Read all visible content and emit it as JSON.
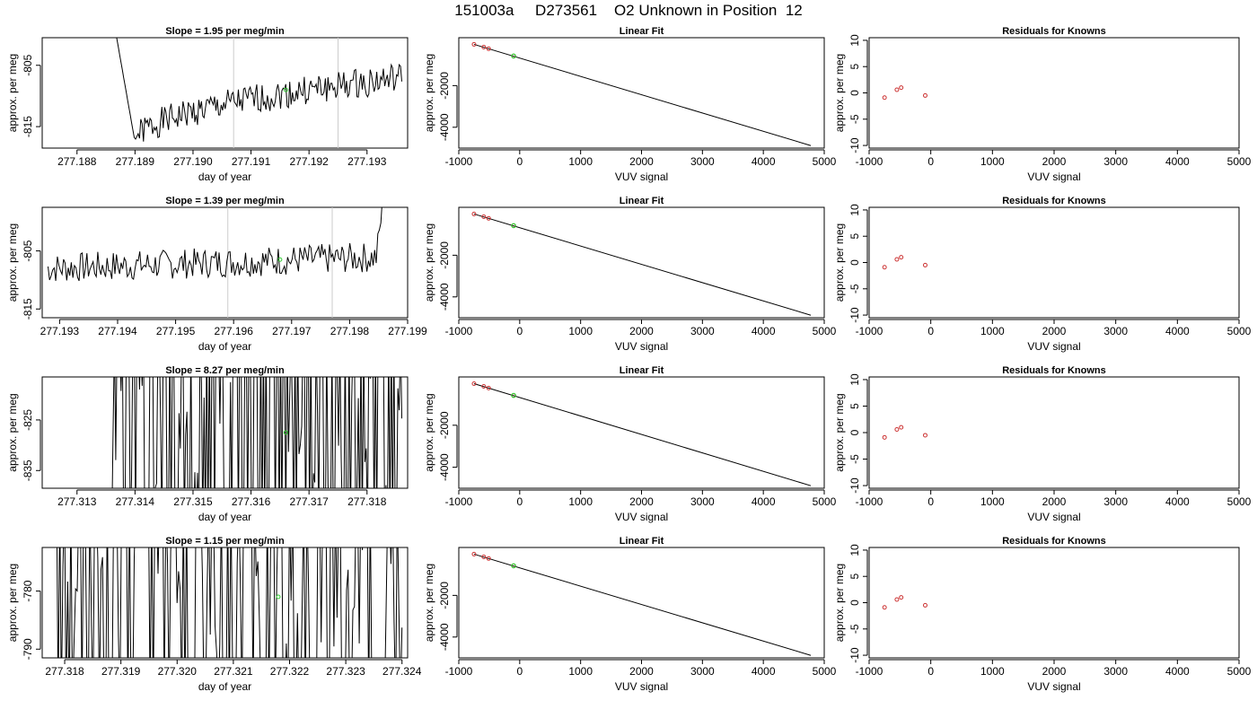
{
  "page_title": "151003a     D273561    O2 Unknown in Position  12",
  "colors": {
    "trace": "#000000",
    "unknown_point": "#33cc33",
    "known_point": "#cc3333",
    "vline": "#cccccc"
  },
  "chart_data": [
    {
      "type": "line",
      "title": "Slope =  1.95  per meg/min",
      "xlabel": "day of year",
      "ylabel": "approx. per meg",
      "xlim": [
        277.1874,
        277.1937
      ],
      "ylim": [
        -818.5,
        -800.5
      ],
      "xticks": [
        "277.188",
        "277.189",
        "277.190",
        "277.191",
        "277.192",
        "277.193"
      ],
      "yticks": [
        "-805",
        "-815"
      ],
      "xtick_values": [
        277.188,
        277.189,
        277.19,
        277.191,
        277.192,
        277.193
      ],
      "ytick_values": [
        -805,
        -815
      ],
      "vlines": [
        277.1907,
        277.1925
      ],
      "marker": {
        "x": 277.1916,
        "y": -809
      },
      "trace_seed": 1,
      "trace_mode": "drift",
      "trace_shape": {
        "x0": 277.1886,
        "x1": 277.1936,
        "y_start": -796,
        "y_dip": -817.5,
        "y_end": -806.5,
        "noise": 1.2
      }
    },
    {
      "type": "line",
      "title": "Linear Fit",
      "xlabel": "VUV signal",
      "ylabel": "",
      "xlim": [
        -1000,
        5000
      ],
      "ylim": [
        -5000,
        300
      ],
      "xticks": [
        "-1000",
        "0",
        "1000",
        "2000",
        "3000",
        "4000",
        "5000"
      ],
      "yticks": [
        "-2000",
        "-4000"
      ],
      "xtick_values": [
        -1000,
        0,
        1000,
        2000,
        3000,
        4000,
        5000
      ],
      "ytick_values": [
        -2000,
        -4000
      ],
      "fit_line": {
        "x": [
          -750,
          4780
        ],
        "y": [
          -20,
          -4880
        ]
      },
      "knowns": {
        "x": [
          -750,
          -590,
          -510,
          -100
        ],
        "y": [
          -20,
          -150,
          -230,
          -580
        ]
      },
      "unknown": {
        "x": -100,
        "y": -580
      }
    },
    {
      "type": "scatter",
      "title": "Residuals for Knowns",
      "xlabel": "VUV signal",
      "ylabel": "",
      "xlim": [
        -1000,
        5000
      ],
      "ylim": [
        -10.5,
        10.5
      ],
      "xticks": [
        "-1000",
        "0",
        "1000",
        "2000",
        "3000",
        "4000",
        "5000"
      ],
      "yticks": [
        "10",
        "5",
        "0",
        "-5",
        "-10"
      ],
      "xtick_values": [
        -1000,
        0,
        1000,
        2000,
        3000,
        4000,
        5000
      ],
      "ytick_values": [
        10,
        5,
        0,
        -5,
        -10
      ],
      "points": {
        "x": [
          -750,
          -550,
          -480,
          -90
        ],
        "y": [
          -0.9,
          0.6,
          1.0,
          -0.5
        ]
      }
    },
    {
      "type": "line",
      "title": "Slope =  1.39  per meg/min",
      "xlabel": "day of year",
      "ylabel": "approx. per meg",
      "xlim": [
        277.1927,
        277.199
      ],
      "ylim": [
        -816.5,
        -797.5
      ],
      "xticks": [
        "277.193",
        "277.194",
        "277.195",
        "277.196",
        "277.197",
        "277.198",
        "277.199"
      ],
      "yticks": [
        "-805",
        "-815"
      ],
      "xtick_values": [
        277.193,
        277.194,
        277.195,
        277.196,
        277.197,
        277.198,
        277.199
      ],
      "ytick_values": [
        -805,
        -815
      ],
      "vlines": [
        277.1959,
        277.1977
      ],
      "marker": {
        "x": 277.1968,
        "y": -806.5
      },
      "trace_seed": 7,
      "trace_mode": "flat",
      "trace_shape": {
        "x0": 277.1928,
        "x1": 277.1987,
        "y_start": -808,
        "y_dip": -809,
        "y_end": -806,
        "noise": 1.3
      }
    },
    {
      "type": "line",
      "title": "Linear Fit",
      "xlabel": "VUV signal",
      "ylabel": "",
      "xlim": [
        -1000,
        5000
      ],
      "ylim": [
        -5000,
        300
      ],
      "xticks": [
        "-1000",
        "0",
        "1000",
        "2000",
        "3000",
        "4000",
        "5000"
      ],
      "yticks": [
        "-2000",
        "-4000"
      ],
      "xtick_values": [
        -1000,
        0,
        1000,
        2000,
        3000,
        4000,
        5000
      ],
      "ytick_values": [
        -2000,
        -4000
      ],
      "fit_line": {
        "x": [
          -750,
          4780
        ],
        "y": [
          -20,
          -4880
        ]
      },
      "knowns": {
        "x": [
          -750,
          -590,
          -510,
          -100
        ],
        "y": [
          -20,
          -150,
          -230,
          -580
        ]
      },
      "unknown": {
        "x": -100,
        "y": -580
      }
    },
    {
      "type": "scatter",
      "title": "Residuals for Knowns",
      "xlabel": "VUV signal",
      "ylabel": "",
      "xlim": [
        -1000,
        5000
      ],
      "ylim": [
        -10.5,
        10.5
      ],
      "xticks": [
        "-1000",
        "0",
        "1000",
        "2000",
        "3000",
        "4000",
        "5000"
      ],
      "yticks": [
        "10",
        "5",
        "0",
        "-5",
        "-10"
      ],
      "xtick_values": [
        -1000,
        0,
        1000,
        2000,
        3000,
        4000,
        5000
      ],
      "ytick_values": [
        10,
        5,
        0,
        -5,
        -10
      ],
      "points": {
        "x": [
          -750,
          -550,
          -480,
          -90
        ],
        "y": [
          -0.9,
          0.6,
          1.0,
          -0.5
        ]
      }
    },
    {
      "type": "line",
      "title": "Slope =  8.27  per meg/min",
      "xlabel": "day of year",
      "ylabel": "approx. per meg",
      "xlim": [
        277.3124,
        277.3187
      ],
      "ylim": [
        -838.5,
        -816.5
      ],
      "xticks": [
        "277.313",
        "277.314",
        "277.315",
        "277.316",
        "277.317",
        "277.318"
      ],
      "yticks": [
        "-825",
        "-835"
      ],
      "xtick_values": [
        277.313,
        277.314,
        277.315,
        277.316,
        277.317,
        277.318
      ],
      "ytick_values": [
        -825,
        -835
      ],
      "vlines": [],
      "marker": {
        "x": 277.3166,
        "y": -827.5
      },
      "trace_seed": 13,
      "trace_mode": "wild",
      "trace_shape": {
        "x0": 277.3136,
        "x1": 277.3186,
        "y_start": -800,
        "y_dip": -845,
        "y_end": -800,
        "noise": 0
      }
    },
    {
      "type": "line",
      "title": "Linear Fit",
      "xlabel": "VUV signal",
      "ylabel": "",
      "xlim": [
        -1000,
        5000
      ],
      "ylim": [
        -5000,
        300
      ],
      "xticks": [
        "-1000",
        "0",
        "1000",
        "2000",
        "3000",
        "4000",
        "5000"
      ],
      "yticks": [
        "-2000",
        "-4000"
      ],
      "xtick_values": [
        -1000,
        0,
        1000,
        2000,
        3000,
        4000,
        5000
      ],
      "ytick_values": [
        -2000,
        -4000
      ],
      "fit_line": {
        "x": [
          -750,
          4780
        ],
        "y": [
          -20,
          -4880
        ]
      },
      "knowns": {
        "x": [
          -750,
          -590,
          -510,
          -100
        ],
        "y": [
          -20,
          -150,
          -230,
          -580
        ]
      },
      "unknown": {
        "x": -100,
        "y": -580
      }
    },
    {
      "type": "scatter",
      "title": "Residuals for Knowns",
      "xlabel": "VUV signal",
      "ylabel": "",
      "xlim": [
        -1000,
        5000
      ],
      "ylim": [
        -10.5,
        10.5
      ],
      "xticks": [
        "-1000",
        "0",
        "1000",
        "2000",
        "3000",
        "4000",
        "5000"
      ],
      "yticks": [
        "10",
        "5",
        "0",
        "-5",
        "-10"
      ],
      "xtick_values": [
        -1000,
        0,
        1000,
        2000,
        3000,
        4000,
        5000
      ],
      "ytick_values": [
        10,
        5,
        0,
        -5,
        -10
      ],
      "points": {
        "x": [
          -750,
          -550,
          -480,
          -90
        ],
        "y": [
          -0.9,
          0.6,
          1.0,
          -0.5
        ]
      }
    },
    {
      "type": "line",
      "title": "Slope =  1.15  per meg/min",
      "xlabel": "day of year",
      "ylabel": "approx. per meg",
      "xlim": [
        277.3176,
        277.3241
      ],
      "ylim": [
        -791.5,
        -772.5
      ],
      "xticks": [
        "277.318",
        "277.319",
        "277.320",
        "277.321",
        "277.322",
        "277.323",
        "277.324"
      ],
      "yticks": [
        "-780",
        "-790"
      ],
      "xtick_values": [
        277.318,
        277.319,
        277.32,
        277.321,
        277.322,
        277.323,
        277.324
      ],
      "ytick_values": [
        -780,
        -790
      ],
      "vlines": [],
      "marker": {
        "x": 277.3218,
        "y": -781
      },
      "trace_seed": 21,
      "trace_mode": "wild",
      "trace_shape": {
        "x0": 277.3178,
        "x1": 277.324,
        "y_start": -770,
        "y_dip": -795,
        "y_end": -770,
        "noise": 0
      }
    },
    {
      "type": "line",
      "title": "Linear Fit",
      "xlabel": "VUV signal",
      "ylabel": "",
      "xlim": [
        -1000,
        5000
      ],
      "ylim": [
        -5000,
        300
      ],
      "xticks": [
        "-1000",
        "0",
        "1000",
        "2000",
        "3000",
        "4000",
        "5000"
      ],
      "yticks": [
        "-2000",
        "-4000"
      ],
      "xtick_values": [
        -1000,
        0,
        1000,
        2000,
        3000,
        4000,
        5000
      ],
      "ytick_values": [
        -2000,
        -4000
      ],
      "fit_line": {
        "x": [
          -750,
          4780
        ],
        "y": [
          -20,
          -4880
        ]
      },
      "knowns": {
        "x": [
          -750,
          -590,
          -510,
          -100
        ],
        "y": [
          -20,
          -150,
          -230,
          -580
        ]
      },
      "unknown": {
        "x": -100,
        "y": -580
      }
    },
    {
      "type": "scatter",
      "title": "Residuals for Knowns",
      "xlabel": "VUV signal",
      "ylabel": "",
      "xlim": [
        -1000,
        5000
      ],
      "ylim": [
        -10.5,
        10.5
      ],
      "xticks": [
        "-1000",
        "0",
        "1000",
        "2000",
        "3000",
        "4000",
        "5000"
      ],
      "yticks": [
        "10",
        "5",
        "0",
        "-5",
        "-10"
      ],
      "xtick_values": [
        -1000,
        0,
        1000,
        2000,
        3000,
        4000,
        5000
      ],
      "ytick_values": [
        10,
        5,
        0,
        -5,
        -10
      ],
      "points": {
        "x": [
          -750,
          -550,
          -480,
          -90
        ],
        "y": [
          -0.9,
          0.6,
          1.0,
          -0.5
        ]
      }
    }
  ]
}
